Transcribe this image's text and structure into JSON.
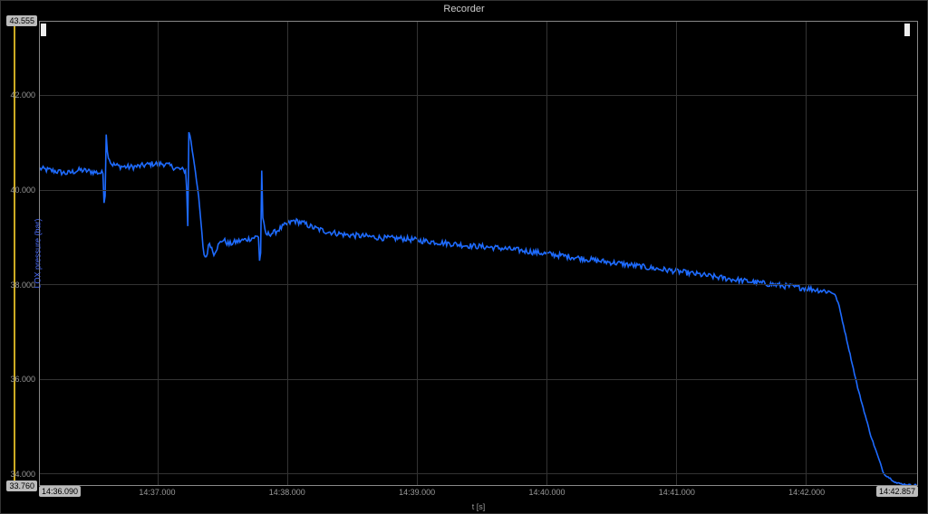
{
  "window": {
    "title": "Recorder"
  },
  "chart": {
    "type": "line",
    "ylabel": "LOX pressure (bar)",
    "xlabel": "t [s]",
    "series_color": "#1e6bff",
    "background_color": "#000000",
    "grid_color": "#333333",
    "border_color": "#888888",
    "tick_label_color": "#999999",
    "ylabel_color": "#4a6cff",
    "yaxis_track_color": "#ccaa22",
    "endcap_bg": "#bbbbbb",
    "endcap_fg": "#000000",
    "line_width": 1.6,
    "xlim": [
      876.09,
      882.857
    ],
    "ylim": [
      33.76,
      43.555
    ],
    "y_ticks": [
      34.0,
      36.0,
      38.0,
      40.0,
      42.0
    ],
    "y_tick_labels": [
      "34.000",
      "36.000",
      "38.000",
      "40.000",
      "42.000"
    ],
    "y_endcap_top": "43.555",
    "y_endcap_bottom": "33.760",
    "x_ticks": [
      877.0,
      878.0,
      879.0,
      880.0,
      881.0,
      882.0
    ],
    "x_tick_labels": [
      "14:37.000",
      "14:38.000",
      "14:39.000",
      "14:40.000",
      "14:41.000",
      "14:42.000"
    ],
    "x_endcap_left": "14:36.090",
    "x_endcap_right": "14:42.857",
    "cursor_left_x": 876.12,
    "cursor_right_x": 882.78,
    "series": [
      [
        876.09,
        40.45
      ],
      [
        876.2,
        40.4
      ],
      [
        876.3,
        40.35
      ],
      [
        876.4,
        40.42
      ],
      [
        876.5,
        40.38
      ],
      [
        876.58,
        40.35
      ],
      [
        876.59,
        39.2
      ],
      [
        876.6,
        41.3
      ],
      [
        876.61,
        40.8
      ],
      [
        876.64,
        40.55
      ],
      [
        876.7,
        40.5
      ],
      [
        876.78,
        40.48
      ],
      [
        876.86,
        40.5
      ],
      [
        876.95,
        40.55
      ],
      [
        877.05,
        40.55
      ],
      [
        877.15,
        40.45
      ],
      [
        877.22,
        40.4
      ],
      [
        877.23,
        39.0
      ],
      [
        877.24,
        41.4
      ],
      [
        877.25,
        41.1
      ],
      [
        877.28,
        40.6
      ],
      [
        877.3,
        40.2
      ],
      [
        877.33,
        39.4
      ],
      [
        877.35,
        38.7
      ],
      [
        877.37,
        38.55
      ],
      [
        877.4,
        38.9
      ],
      [
        877.43,
        38.65
      ],
      [
        877.46,
        38.8
      ],
      [
        877.5,
        38.95
      ],
      [
        877.55,
        38.85
      ],
      [
        877.6,
        38.9
      ],
      [
        877.68,
        38.95
      ],
      [
        877.78,
        39.02
      ],
      [
        877.79,
        37.9
      ],
      [
        877.8,
        40.55
      ],
      [
        877.81,
        39.4
      ],
      [
        877.83,
        39.05
      ],
      [
        877.9,
        39.1
      ],
      [
        877.98,
        39.25
      ],
      [
        878.05,
        39.35
      ],
      [
        878.12,
        39.3
      ],
      [
        878.2,
        39.2
      ],
      [
        878.3,
        39.12
      ],
      [
        878.45,
        39.05
      ],
      [
        878.6,
        39.02
      ],
      [
        878.75,
        38.98
      ],
      [
        878.9,
        38.97
      ],
      [
        879.05,
        38.92
      ],
      [
        879.2,
        38.88
      ],
      [
        879.4,
        38.82
      ],
      [
        879.6,
        38.78
      ],
      [
        879.8,
        38.72
      ],
      [
        880.0,
        38.65
      ],
      [
        880.2,
        38.58
      ],
      [
        880.4,
        38.5
      ],
      [
        880.6,
        38.43
      ],
      [
        880.8,
        38.35
      ],
      [
        881.0,
        38.28
      ],
      [
        881.2,
        38.2
      ],
      [
        881.4,
        38.12
      ],
      [
        881.6,
        38.05
      ],
      [
        881.8,
        37.98
      ],
      [
        882.0,
        37.92
      ],
      [
        882.1,
        37.88
      ],
      [
        882.18,
        37.85
      ],
      [
        882.22,
        37.8
      ],
      [
        882.25,
        37.6
      ],
      [
        882.3,
        37.0
      ],
      [
        882.4,
        35.8
      ],
      [
        882.5,
        34.8
      ],
      [
        882.6,
        34.0
      ],
      [
        882.7,
        33.8
      ],
      [
        882.8,
        33.76
      ]
    ],
    "noise_amp": 0.12
  }
}
